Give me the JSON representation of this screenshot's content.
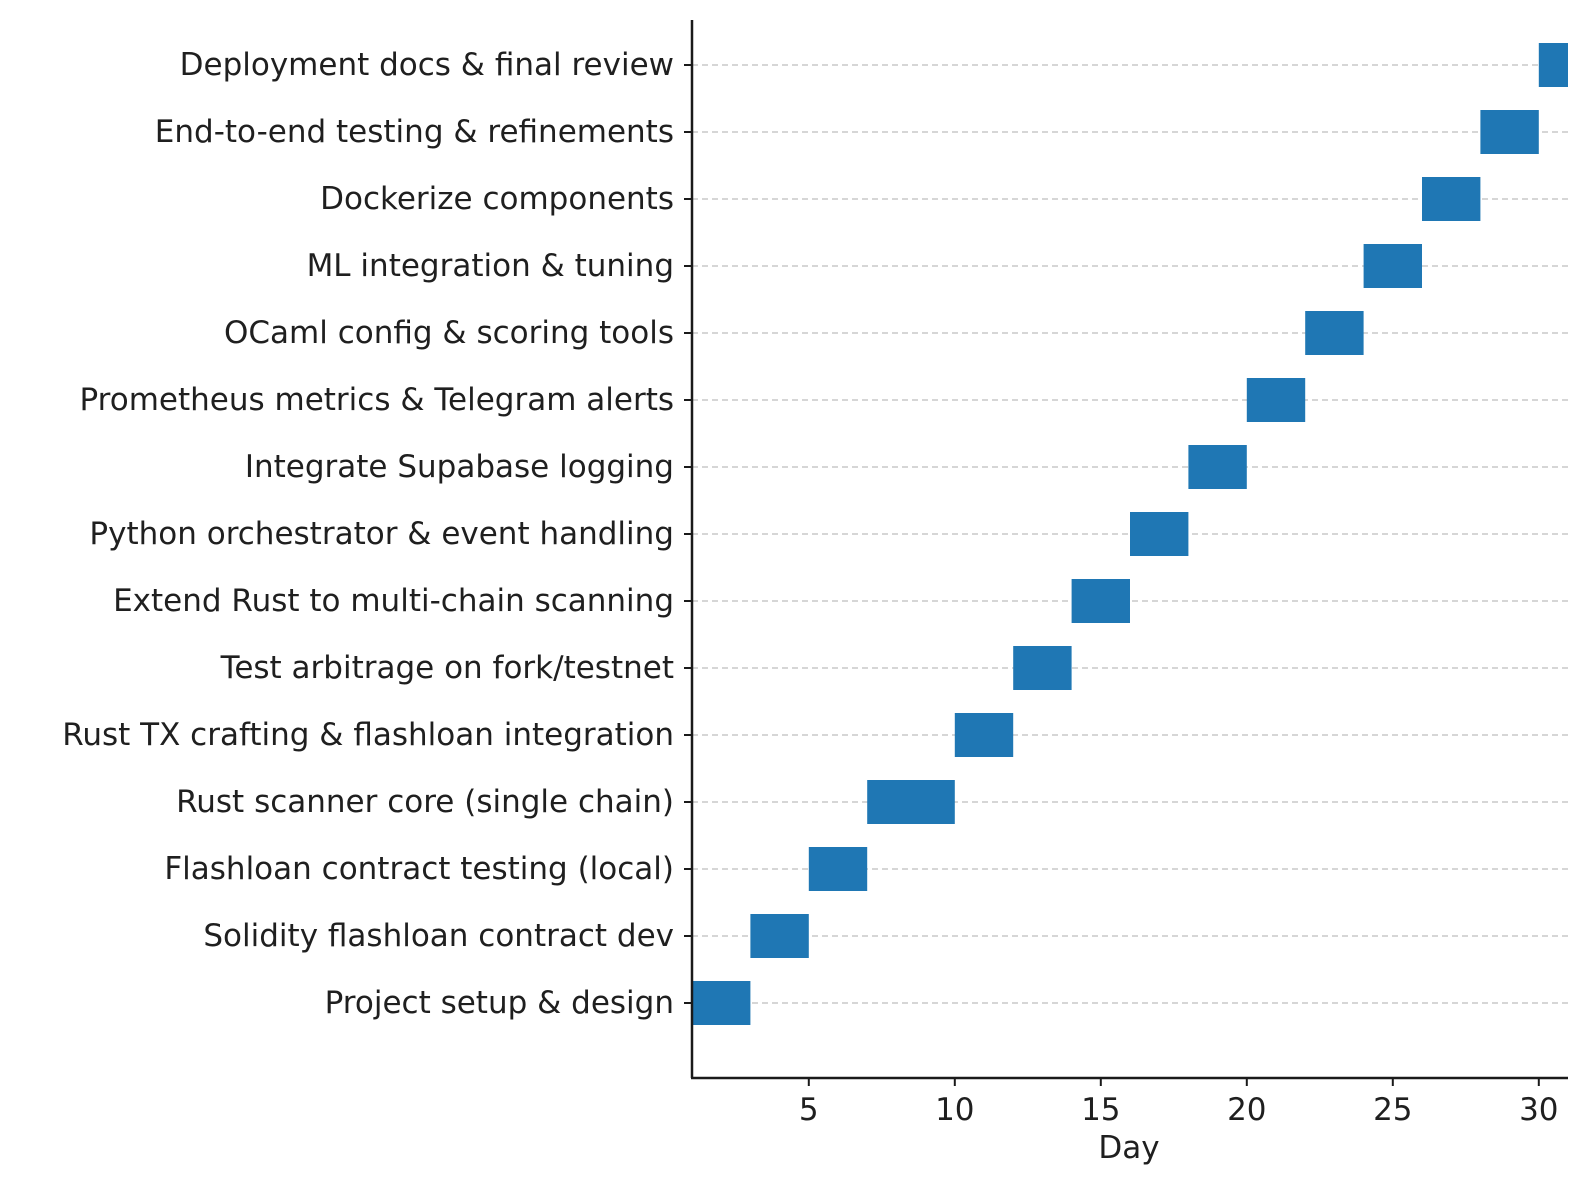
{
  "colors": {
    "bar": "#1f77b4"
  },
  "chart_data": {
    "type": "bar",
    "orientation": "horizontal",
    "title": "",
    "xlabel": "Day",
    "ylabel": "",
    "xlim": [
      1,
      31
    ],
    "x_ticks": [
      5,
      10,
      15,
      20,
      25,
      30
    ],
    "grid": "y dashed",
    "tasks": [
      {
        "name": "Project setup & design",
        "start": 1,
        "end": 3
      },
      {
        "name": "Solidity flashloan contract dev",
        "start": 3,
        "end": 5
      },
      {
        "name": "Flashloan contract testing (local)",
        "start": 5,
        "end": 7
      },
      {
        "name": "Rust scanner core (single chain)",
        "start": 7,
        "end": 10
      },
      {
        "name": "Rust TX crafting & flashloan integration",
        "start": 10,
        "end": 12
      },
      {
        "name": "Test arbitrage on fork/testnet",
        "start": 12,
        "end": 14
      },
      {
        "name": "Extend Rust to multi-chain scanning",
        "start": 14,
        "end": 16
      },
      {
        "name": "Python orchestrator & event handling",
        "start": 16,
        "end": 18
      },
      {
        "name": "Integrate Supabase logging",
        "start": 18,
        "end": 20
      },
      {
        "name": "Prometheus metrics & Telegram alerts",
        "start": 20,
        "end": 22
      },
      {
        "name": "OCaml config & scoring tools",
        "start": 22,
        "end": 24
      },
      {
        "name": "ML integration & tuning",
        "start": 24,
        "end": 26
      },
      {
        "name": "Dockerize components",
        "start": 26,
        "end": 28
      },
      {
        "name": "End-to-end testing & refinements",
        "start": 28,
        "end": 30
      },
      {
        "name": "Deployment docs & final review",
        "start": 30,
        "end": 31
      }
    ]
  }
}
